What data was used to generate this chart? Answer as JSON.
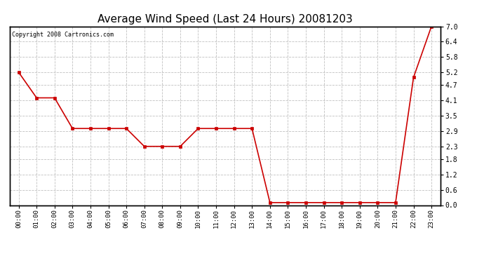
{
  "title": "Average Wind Speed (Last 24 Hours) 20081203",
  "copyright": "Copyright 2008 Cartronics.com",
  "x_labels": [
    "00:00",
    "01:00",
    "02:00",
    "03:00",
    "04:00",
    "05:00",
    "06:00",
    "07:00",
    "08:00",
    "09:00",
    "10:00",
    "11:00",
    "12:00",
    "13:00",
    "14:00",
    "15:00",
    "16:00",
    "17:00",
    "18:00",
    "19:00",
    "20:00",
    "21:00",
    "22:00",
    "23:00"
  ],
  "y_values": [
    5.2,
    4.2,
    4.2,
    3.0,
    3.0,
    3.0,
    3.0,
    2.3,
    2.3,
    2.3,
    3.0,
    3.0,
    3.0,
    3.0,
    0.1,
    0.1,
    0.1,
    0.1,
    0.1,
    0.1,
    0.1,
    0.1,
    5.0,
    7.0
  ],
  "line_color": "#cc0000",
  "marker_color": "#cc0000",
  "bg_color": "#ffffff",
  "plot_bg_color": "#ffffff",
  "grid_color": "#c0c0c0",
  "title_fontsize": 11,
  "y_min": 0.0,
  "y_max": 7.0,
  "y_ticks": [
    0.0,
    0.6,
    1.2,
    1.8,
    2.3,
    2.9,
    3.5,
    4.1,
    4.7,
    5.2,
    5.8,
    6.4,
    7.0
  ]
}
